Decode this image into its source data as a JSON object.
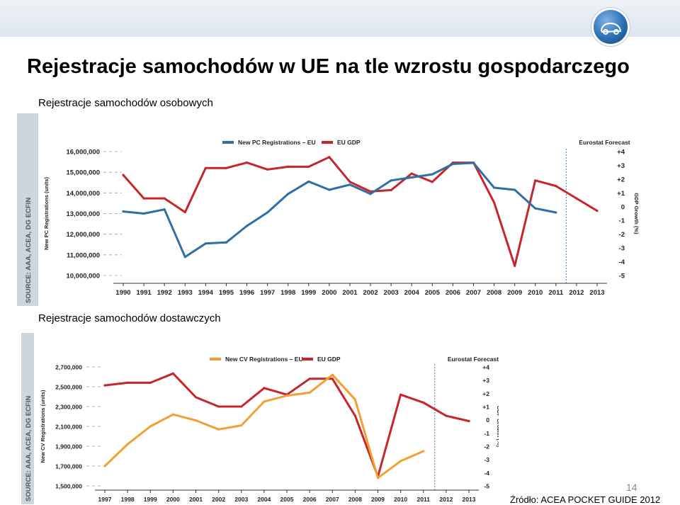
{
  "slide": {
    "title": "Rejestracje samochodów w UE na tle wzrostu gospodarczego",
    "subtitle_pc": "Rejestracje samochodów osobowych",
    "subtitle_cv": "Rejestracje samochodów dostawczych",
    "page_number": "14",
    "source_note": "Źródło: ACEA POCKET GUIDE 2012"
  },
  "colors": {
    "pc_line": "#2f6ea7",
    "cv_line": "#f2a033",
    "gdp_line": "#c8242c",
    "text": "#222222",
    "grid": "#9a9a9a"
  },
  "chart_data": [
    {
      "type": "line",
      "legend": [
        "New PC Registrations – EU",
        "EU GDP"
      ],
      "forecast_label": "Eurostat Forecast",
      "source_label": "SOURCE: AAA, ACEA, DG ECFIN",
      "ylabel": "New PC Registrations (units)",
      "y2label": "GDP Growth (%)",
      "ylim": [
        10000000,
        16000000
      ],
      "y2lim": [
        -5,
        4
      ],
      "y_ticks": [
        "16,000,000",
        "15,000,000",
        "14,000,000",
        "13,000,000",
        "12,000,000",
        "11,000,000",
        "10,000,000"
      ],
      "y2_ticks": [
        "+4",
        "+3",
        "+2",
        "+1",
        "0",
        "-1",
        "-2",
        "-3",
        "-4",
        "-5"
      ],
      "x": [
        "1990",
        "1991",
        "1992",
        "1993",
        "1994",
        "1995",
        "1996",
        "1997",
        "1998",
        "1999",
        "2000",
        "2001",
        "2002",
        "2003",
        "2004",
        "2005",
        "2006",
        "2007",
        "2008",
        "2009",
        "2010",
        "2011",
        "2012",
        "2013"
      ],
      "series": [
        {
          "name": "New PC Registrations – EU",
          "axis": "left",
          "values": [
            13100000,
            13000000,
            13200000,
            10900000,
            11550000,
            11600000,
            12400000,
            13050000,
            13950000,
            14550000,
            14150000,
            14400000,
            13950000,
            14600000,
            14750000,
            14900000,
            15400000,
            15450000,
            14250000,
            14150000,
            13250000,
            13050000,
            null,
            null
          ]
        },
        {
          "name": "EU GDP",
          "axis": "right",
          "values": [
            2.3,
            0.6,
            0.6,
            -0.4,
            2.8,
            2.8,
            3.2,
            2.7,
            2.9,
            2.9,
            3.6,
            1.8,
            1.1,
            1.2,
            2.4,
            1.8,
            3.2,
            3.2,
            0.3,
            -4.3,
            1.9,
            1.5,
            0.6,
            -0.3
          ]
        }
      ]
    },
    {
      "type": "line",
      "legend": [
        "New CV Registrations – EU",
        "EU GDP"
      ],
      "forecast_label": "Eurostat Forecast",
      "source_label": "SOURCE: AAA, ACEA, DG ECFIN",
      "ylabel": "New CV Registrations (units)",
      "y2label": "GDP Growth (%)",
      "ylim": [
        1500000,
        2700000
      ],
      "y2lim": [
        -5,
        4
      ],
      "y_ticks": [
        "2,700,000",
        "2,500,000",
        "2,300,000",
        "2,100,000",
        "1,900,000",
        "1,700,000",
        "1,500,000"
      ],
      "y2_ticks": [
        "+4",
        "+3",
        "+2",
        "+1",
        "0",
        "-1",
        "-2",
        "-3",
        "-4",
        "-5"
      ],
      "x": [
        "1997",
        "1998",
        "1999",
        "2000",
        "2001",
        "2002",
        "2003",
        "2004",
        "2005",
        "2006",
        "2007",
        "2008",
        "2009",
        "2010",
        "2011",
        "2012",
        "2013"
      ],
      "series": [
        {
          "name": "New CV Registrations – EU",
          "axis": "left",
          "values": [
            1700000,
            1920000,
            2100000,
            2220000,
            2160000,
            2070000,
            2110000,
            2350000,
            2410000,
            2440000,
            2620000,
            2370000,
            1580000,
            1750000,
            1850000,
            null,
            null
          ]
        },
        {
          "name": "EU GDP",
          "axis": "right",
          "values": [
            2.6,
            2.8,
            2.8,
            3.5,
            1.7,
            1.0,
            1.0,
            2.4,
            1.9,
            3.1,
            3.1,
            0.3,
            -4.3,
            1.9,
            1.3,
            0.3,
            -0.1
          ]
        }
      ]
    }
  ]
}
